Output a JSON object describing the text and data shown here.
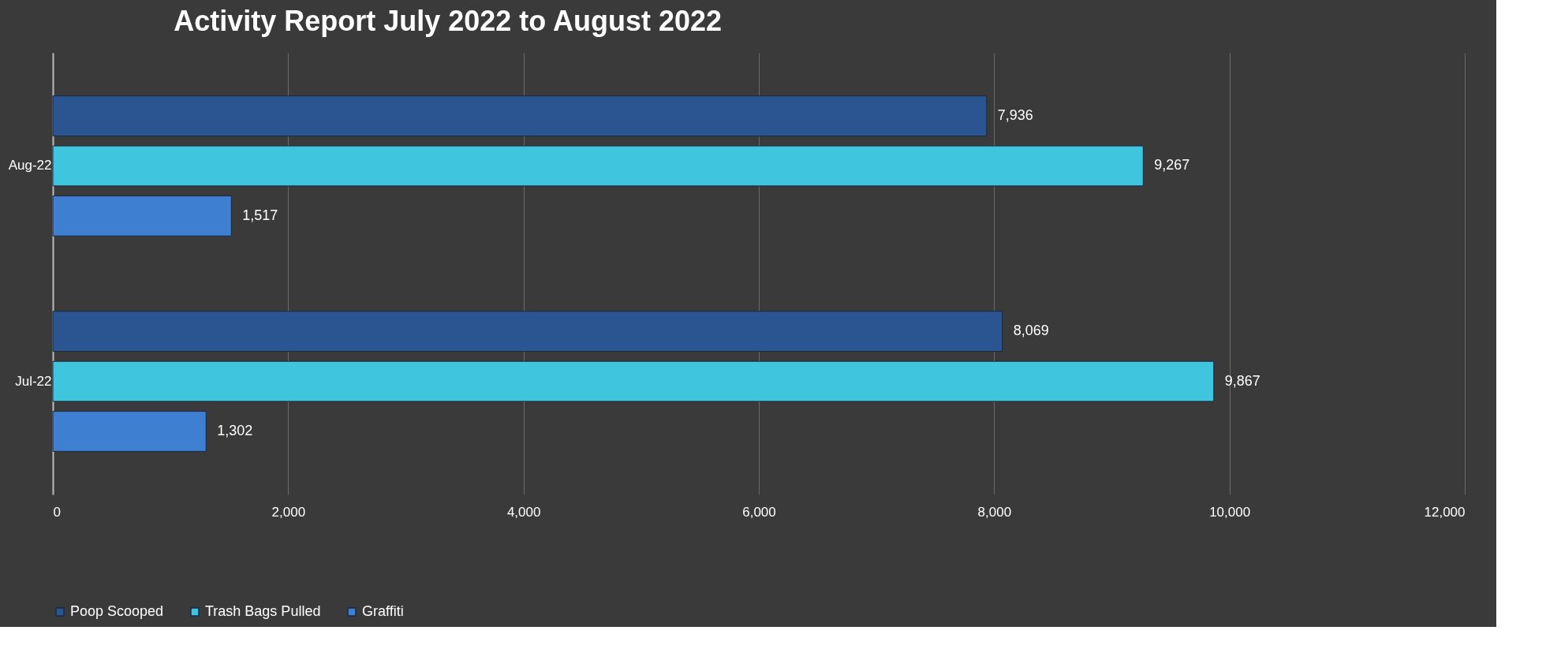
{
  "chart_data": {
    "type": "bar",
    "orientation": "horizontal",
    "title": "Activity Report July 2022 to August 2022",
    "categories": [
      "Aug-22",
      "Jul-22"
    ],
    "series": [
      {
        "name": "Poop Scooped",
        "color": "#2b5590",
        "values": [
          7936,
          8069
        ],
        "value_labels": [
          "7,936",
          "8,069"
        ]
      },
      {
        "name": "Trash Bags Pulled",
        "color": "#3fc6de",
        "values": [
          9267,
          9867
        ],
        "value_labels": [
          "9,267",
          "9,867"
        ]
      },
      {
        "name": "Graffiti",
        "color": "#3f7fd2",
        "values": [
          1517,
          1302
        ],
        "value_labels": [
          "1,517",
          "1,302"
        ]
      }
    ],
    "xlim": [
      0,
      12000
    ],
    "xticks": [
      0,
      {
        "value": 2000,
        "label": "2,000"
      },
      {
        "value": 4000,
        "label": "4,000"
      },
      {
        "value": 6000,
        "label": "6,000"
      },
      {
        "value": 8000,
        "label": "8,000"
      },
      {
        "value": 10000,
        "label": "10,000"
      },
      {
        "value": 12000,
        "label": "12,000"
      }
    ],
    "grid": "x",
    "legend": "bottom"
  }
}
